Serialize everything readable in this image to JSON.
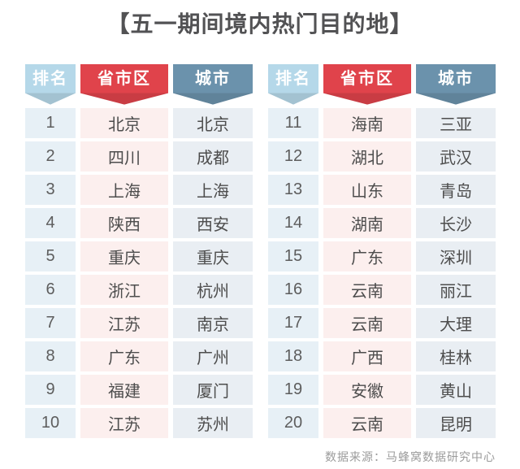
{
  "title": "【五一期间境内热门目的地】",
  "source_note": "数据来源：马蜂窝数据研究中心",
  "colors": {
    "header_rank_bg": "#b5d8e9",
    "header_province_bg": "#e0434b",
    "header_city_bg": "#6b92ac",
    "cell_rank_bg": "#e7f0f6",
    "cell_province_bg": "#fcefee",
    "cell_city_bg": "#e9eef3",
    "title_text": "#525254",
    "body_text": "#4d4d4d",
    "source_text": "#9b9b9b"
  },
  "chart_data": {
    "type": "table",
    "title": "【五一期间境内热门目的地】",
    "columns": [
      "排名",
      "省市区",
      "城市"
    ],
    "rows": [
      [
        1,
        "北京",
        "北京"
      ],
      [
        2,
        "四川",
        "成都"
      ],
      [
        3,
        "上海",
        "上海"
      ],
      [
        4,
        "陕西",
        "西安"
      ],
      [
        5,
        "重庆",
        "重庆"
      ],
      [
        6,
        "浙江",
        "杭州"
      ],
      [
        7,
        "江苏",
        "南京"
      ],
      [
        8,
        "广东",
        "广州"
      ],
      [
        9,
        "福建",
        "厦门"
      ],
      [
        10,
        "江苏",
        "苏州"
      ],
      [
        11,
        "海南",
        "三亚"
      ],
      [
        12,
        "湖北",
        "武汉"
      ],
      [
        13,
        "山东",
        "青岛"
      ],
      [
        14,
        "湖南",
        "长沙"
      ],
      [
        15,
        "广东",
        "深圳"
      ],
      [
        16,
        "云南",
        "丽江"
      ],
      [
        17,
        "云南",
        "大理"
      ],
      [
        18,
        "广西",
        "桂林"
      ],
      [
        19,
        "安徽",
        "黄山"
      ],
      [
        20,
        "云南",
        "昆明"
      ]
    ],
    "source": "数据来源：马蜂窝数据研究中心",
    "layout": "two side-by-side tables: ranks 1-10 left, ranks 11-20 right"
  }
}
